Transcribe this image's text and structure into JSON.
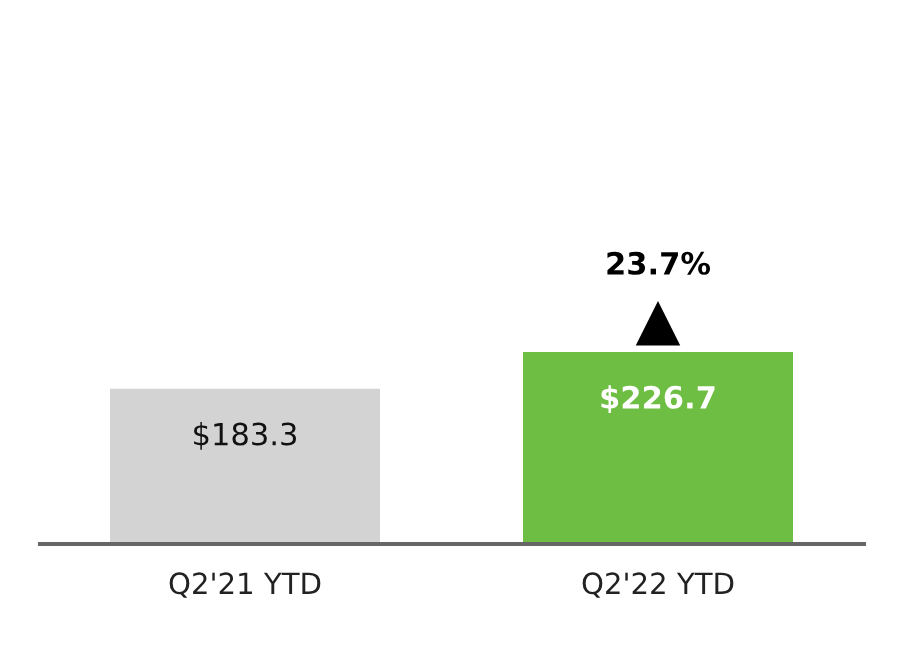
{
  "chart_data": {
    "type": "bar",
    "categories": [
      "Q2'21 YTD",
      "Q2'22 YTD"
    ],
    "values": [
      183.3,
      226.7
    ],
    "colors": [
      "#d3d3d3",
      "#6fbe44"
    ],
    "value_labels": [
      "$183.3",
      "$226.7"
    ],
    "annotations": [
      {
        "text": "23.7%",
        "x": "Q2'22 YTD",
        "y": 226.7
      }
    ],
    "grid": false,
    "legend": false
  }
}
